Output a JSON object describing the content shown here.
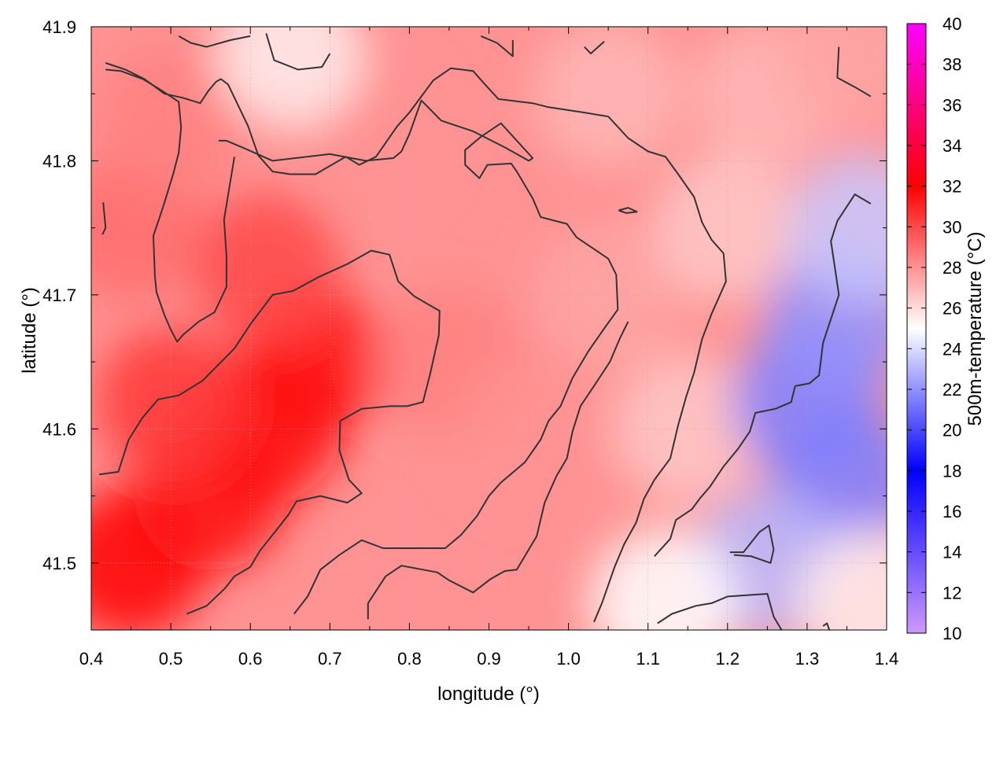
{
  "chart_data": {
    "type": "heatmap",
    "title": "",
    "xlabel": "longitude (°)",
    "ylabel": "latitude (°)",
    "colorbar_label": "500m-temperature (°C)",
    "xlim": [
      0.4,
      1.4
    ],
    "ylim": [
      41.45,
      41.9
    ],
    "x_ticks": [
      "0.4",
      "0.5",
      "0.6",
      "0.7",
      "0.8",
      "0.9",
      "1.0",
      "1.1",
      "1.2",
      "1.3",
      "1.4"
    ],
    "y_ticks": [
      "41.5",
      "41.6",
      "41.7",
      "41.8",
      "41.9"
    ],
    "colorbar_range": [
      10,
      40
    ],
    "colorbar_ticks": [
      "10",
      "12",
      "14",
      "16",
      "18",
      "20",
      "22",
      "24",
      "26",
      "28",
      "30",
      "32",
      "34",
      "36",
      "38",
      "40"
    ],
    "colorscale": [
      {
        "value": 10,
        "color": "#cc99ff"
      },
      {
        "value": 18,
        "color": "#0000ff"
      },
      {
        "value": 25,
        "color": "#ffffff"
      },
      {
        "value": 32,
        "color": "#ff0000"
      },
      {
        "value": 40,
        "color": "#ff00ff"
      }
    ],
    "grid": true,
    "field_regions": [
      {
        "lon": 0.45,
        "lat": 41.5,
        "temp": 32.0
      },
      {
        "lon": 0.55,
        "lat": 41.55,
        "temp": 31.5
      },
      {
        "lon": 0.62,
        "lat": 41.6,
        "temp": 31.5
      },
      {
        "lon": 0.68,
        "lat": 41.65,
        "temp": 31.5
      },
      {
        "lon": 0.62,
        "lat": 41.72,
        "temp": 30.0
      },
      {
        "lon": 0.5,
        "lat": 41.62,
        "temp": 30.5
      },
      {
        "lon": 0.45,
        "lat": 41.75,
        "temp": 29.0
      },
      {
        "lon": 0.5,
        "lat": 41.83,
        "temp": 28.5
      },
      {
        "lon": 0.75,
        "lat": 41.82,
        "temp": 28.0
      },
      {
        "lon": 0.85,
        "lat": 41.65,
        "temp": 28.5
      },
      {
        "lon": 0.95,
        "lat": 41.6,
        "temp": 28.0
      },
      {
        "lon": 1.05,
        "lat": 41.7,
        "temp": 27.5
      },
      {
        "lon": 1.05,
        "lat": 41.85,
        "temp": 27.0
      },
      {
        "lon": 1.25,
        "lat": 41.85,
        "temp": 27.0
      },
      {
        "lon": 1.15,
        "lat": 41.6,
        "temp": 26.5
      },
      {
        "lon": 1.2,
        "lat": 41.75,
        "temp": 26.5
      },
      {
        "lon": 0.65,
        "lat": 41.88,
        "temp": 25.5
      },
      {
        "lon": 1.36,
        "lat": 41.88,
        "temp": 27.5
      },
      {
        "lon": 1.3,
        "lat": 41.62,
        "temp": 21.5
      },
      {
        "lon": 1.34,
        "lat": 41.68,
        "temp": 22.0
      },
      {
        "lon": 1.35,
        "lat": 41.56,
        "temp": 21.5
      },
      {
        "lon": 1.25,
        "lat": 41.5,
        "temp": 23.0
      },
      {
        "lon": 1.37,
        "lat": 41.75,
        "temp": 23.5
      },
      {
        "lon": 1.12,
        "lat": 41.47,
        "temp": 25.0
      },
      {
        "lon": 1.38,
        "lat": 41.47,
        "temp": 25.5
      }
    ],
    "contours": [
      [
        [
          0.418,
          41.873
        ],
        [
          0.443,
          41.868
        ],
        [
          0.467,
          41.861
        ],
        [
          0.492,
          41.85
        ],
        [
          0.515,
          41.847
        ],
        [
          0.537,
          41.843
        ],
        [
          0.547,
          41.852
        ],
        [
          0.557,
          41.859
        ],
        [
          0.563,
          41.861
        ],
        [
          0.572,
          41.857
        ],
        [
          0.597,
          41.826
        ],
        [
          0.61,
          41.804
        ],
        [
          0.628,
          41.792
        ],
        [
          0.65,
          41.79
        ],
        [
          0.682,
          41.79
        ],
        [
          0.72,
          41.803
        ],
        [
          0.737,
          41.797
        ],
        [
          0.758,
          41.803
        ],
        [
          0.785,
          41.826
        ],
        [
          0.8,
          41.836
        ],
        [
          0.83,
          41.86
        ],
        [
          0.852,
          41.869
        ],
        [
          0.88,
          41.867
        ],
        [
          0.895,
          41.857
        ],
        [
          0.912,
          41.846
        ],
        [
          0.955,
          41.843
        ],
        [
          0.975,
          41.84
        ],
        [
          1.02,
          41.836
        ],
        [
          1.05,
          41.833
        ],
        [
          1.075,
          41.817
        ],
        [
          1.1,
          41.807
        ],
        [
          1.122,
          41.803
        ],
        [
          1.138,
          41.79
        ],
        [
          1.158,
          41.773
        ],
        [
          1.168,
          41.754
        ],
        [
          1.18,
          41.741
        ],
        [
          1.195,
          41.731
        ],
        [
          1.198,
          41.71
        ],
        [
          1.18,
          41.686
        ],
        [
          1.168,
          41.667
        ],
        [
          1.158,
          41.642
        ],
        [
          1.148,
          41.624
        ],
        [
          1.138,
          41.603
        ],
        [
          1.128,
          41.578
        ],
        [
          1.108,
          41.562
        ],
        [
          1.095,
          41.548
        ],
        [
          1.085,
          41.53
        ],
        [
          1.07,
          41.514
        ],
        [
          1.058,
          41.497
        ],
        [
          1.042,
          41.47
        ],
        [
          1.032,
          41.456
        ]
      ],
      [
        [
          0.418,
          41.868
        ],
        [
          0.437,
          41.867
        ],
        [
          0.465,
          41.861
        ],
        [
          0.487,
          41.853
        ],
        [
          0.51,
          41.844
        ],
        [
          0.513,
          41.825
        ],
        [
          0.51,
          41.806
        ],
        [
          0.503,
          41.79
        ],
        [
          0.49,
          41.765
        ],
        [
          0.478,
          41.744
        ],
        [
          0.48,
          41.714
        ],
        [
          0.482,
          41.702
        ],
        [
          0.492,
          41.685
        ],
        [
          0.5,
          41.674
        ],
        [
          0.508,
          41.665
        ],
        [
          0.515,
          41.67
        ],
        [
          0.535,
          41.68
        ],
        [
          0.555,
          41.687
        ],
        [
          0.57,
          41.706
        ],
        [
          0.57,
          41.729
        ],
        [
          0.567,
          41.756
        ],
        [
          0.575,
          41.785
        ],
        [
          0.58,
          41.803
        ]
      ],
      [
        [
          0.41,
          41.566
        ],
        [
          0.434,
          41.568
        ],
        [
          0.447,
          41.592
        ],
        [
          0.464,
          41.608
        ],
        [
          0.484,
          41.622
        ],
        [
          0.51,
          41.625
        ],
        [
          0.54,
          41.636
        ],
        [
          0.565,
          41.651
        ],
        [
          0.58,
          41.66
        ],
        [
          0.6,
          41.678
        ],
        [
          0.628,
          41.7
        ],
        [
          0.654,
          41.703
        ],
        [
          0.685,
          41.713
        ],
        [
          0.722,
          41.723
        ],
        [
          0.752,
          41.733
        ],
        [
          0.775,
          41.73
        ],
        [
          0.786,
          41.71
        ],
        [
          0.806,
          41.699
        ],
        [
          0.832,
          41.69
        ],
        [
          0.838,
          41.688
        ],
        [
          0.837,
          41.67
        ],
        [
          0.826,
          41.641
        ],
        [
          0.817,
          41.62
        ],
        [
          0.797,
          41.617
        ],
        [
          0.776,
          41.617
        ],
        [
          0.74,
          41.615
        ],
        [
          0.713,
          41.606
        ],
        [
          0.712,
          41.584
        ],
        [
          0.724,
          41.562
        ],
        [
          0.74,
          41.552
        ],
        [
          0.722,
          41.545
        ],
        [
          0.688,
          41.55
        ],
        [
          0.658,
          41.546
        ],
        [
          0.648,
          41.536
        ],
        [
          0.632,
          41.524
        ],
        [
          0.612,
          41.509
        ],
        [
          0.6,
          41.497
        ],
        [
          0.58,
          41.49
        ],
        [
          0.568,
          41.481
        ],
        [
          0.545,
          41.468
        ],
        [
          0.52,
          41.462
        ]
      ],
      [
        [
          0.655,
          41.462
        ],
        [
          0.672,
          41.475
        ],
        [
          0.688,
          41.495
        ],
        [
          0.712,
          41.506
        ],
        [
          0.74,
          41.517
        ],
        [
          0.767,
          41.511
        ],
        [
          0.8,
          41.511
        ],
        [
          0.845,
          41.511
        ],
        [
          0.865,
          41.521
        ],
        [
          0.885,
          41.535
        ],
        [
          0.9,
          41.55
        ],
        [
          0.915,
          41.56
        ],
        [
          0.945,
          41.575
        ],
        [
          0.965,
          41.592
        ],
        [
          0.975,
          41.606
        ],
        [
          0.99,
          41.617
        ],
        [
          1.005,
          41.638
        ],
        [
          1.025,
          41.658
        ],
        [
          1.045,
          41.675
        ],
        [
          1.062,
          41.689
        ],
        [
          1.06,
          41.715
        ],
        [
          1.05,
          41.727
        ],
        [
          1.03,
          41.735
        ],
        [
          1.01,
          41.743
        ],
        [
          0.998,
          41.753
        ],
        [
          0.965,
          41.758
        ],
        [
          0.955,
          41.772
        ],
        [
          0.935,
          41.792
        ],
        [
          0.928,
          41.798
        ],
        [
          0.898,
          41.797
        ],
        [
          0.888,
          41.787
        ],
        [
          0.87,
          41.797
        ],
        [
          0.87,
          41.808
        ],
        [
          0.89,
          41.818
        ],
        [
          0.915,
          41.828
        ],
        [
          0.955,
          41.802
        ],
        [
          0.95,
          41.8
        ],
        [
          0.92,
          41.81
        ],
        [
          0.88,
          41.822
        ],
        [
          0.84,
          41.83
        ],
        [
          0.815,
          41.845
        ],
        [
          0.8,
          41.82
        ],
        [
          0.79,
          41.807
        ],
        [
          0.78,
          41.802
        ],
        [
          0.745,
          41.8
        ],
        [
          0.7,
          41.805
        ],
        [
          0.628,
          41.8
        ],
        [
          0.59,
          41.81
        ],
        [
          0.57,
          41.815
        ],
        [
          0.56,
          41.815
        ]
      ],
      [
        [
          0.748,
          41.458
        ],
        [
          0.748,
          41.47
        ],
        [
          0.77,
          41.49
        ],
        [
          0.79,
          41.498
        ],
        [
          0.835,
          41.493
        ],
        [
          0.85,
          41.487
        ],
        [
          0.88,
          41.478
        ],
        [
          0.902,
          41.488
        ],
        [
          0.92,
          41.494
        ],
        [
          0.935,
          41.495
        ],
        [
          0.96,
          41.52
        ],
        [
          0.97,
          41.545
        ],
        [
          0.985,
          41.565
        ],
        [
          0.998,
          41.578
        ],
        [
          1.005,
          41.598
        ],
        [
          1.015,
          41.617
        ],
        [
          1.032,
          41.632
        ],
        [
          1.052,
          41.65
        ],
        [
          1.065,
          41.668
        ],
        [
          1.075,
          41.68
        ]
      ]
    ],
    "small_features": [
      {
        "name": "closed loop",
        "points": [
          [
            1.063,
            41.763
          ],
          [
            1.075,
            41.765
          ],
          [
            1.086,
            41.762
          ],
          [
            1.073,
            41.761
          ],
          [
            1.063,
            41.763
          ]
        ]
      },
      {
        "name": "loop south-east",
        "points": [
          [
            1.203,
            41.508
          ],
          [
            1.22,
            41.508
          ],
          [
            1.24,
            41.523
          ],
          [
            1.252,
            41.528
          ],
          [
            1.258,
            41.51
          ],
          [
            1.254,
            41.5
          ],
          [
            1.23,
            41.505
          ],
          [
            1.208,
            41.506
          ]
        ]
      },
      {
        "name": "top center segment",
        "points": [
          [
            0.62,
            41.895
          ],
          [
            0.63,
            41.875
          ],
          [
            0.66,
            41.868
          ],
          [
            0.69,
            41.87
          ],
          [
            0.7,
            41.88
          ]
        ]
      },
      {
        "name": "top right bits",
        "points": [
          [
            0.89,
            41.893
          ],
          [
            0.91,
            41.888
          ],
          [
            0.93,
            41.878
          ],
          [
            0.93,
            41.89
          ]
        ]
      },
      {
        "name": "top right bits 2",
        "points": [
          [
            1.02,
            41.885
          ],
          [
            1.028,
            41.88
          ],
          [
            1.045,
            41.889
          ]
        ]
      },
      {
        "name": "top right corner",
        "points": [
          [
            1.34,
            41.885
          ],
          [
            1.338,
            41.862
          ],
          [
            1.36,
            41.855
          ],
          [
            1.38,
            41.848
          ]
        ]
      },
      {
        "name": "right edge",
        "points": [
          [
            1.38,
            41.768
          ],
          [
            1.36,
            41.775
          ],
          [
            1.338,
            41.755
          ],
          [
            1.33,
            41.74
          ],
          [
            1.335,
            41.72
          ],
          [
            1.34,
            41.7
          ],
          [
            1.32,
            41.664
          ],
          [
            1.315,
            41.64
          ],
          [
            1.303,
            41.634
          ],
          [
            1.285,
            41.632
          ],
          [
            1.28,
            41.62
          ],
          [
            1.26,
            41.615
          ],
          [
            1.235,
            41.612
          ],
          [
            1.228,
            41.598
          ],
          [
            1.213,
            41.585
          ],
          [
            1.195,
            41.572
          ],
          [
            1.178,
            41.557
          ],
          [
            1.165,
            41.548
          ],
          [
            1.155,
            41.54
          ],
          [
            1.135,
            41.532
          ],
          [
            1.128,
            41.518
          ],
          [
            1.108,
            41.505
          ]
        ]
      },
      {
        "name": "bottom right",
        "points": [
          [
            1.112,
            41.455
          ],
          [
            1.13,
            41.462
          ],
          [
            1.16,
            41.468
          ],
          [
            1.18,
            41.47
          ],
          [
            1.2,
            41.475
          ],
          [
            1.25,
            41.477
          ],
          [
            1.258,
            41.46
          ],
          [
            1.268,
            41.45
          ]
        ]
      },
      {
        "name": "bottom right tiny",
        "points": [
          [
            1.32,
            41.453
          ],
          [
            1.325,
            41.455
          ],
          [
            1.328,
            41.45
          ]
        ]
      },
      {
        "name": "left edge bit",
        "points": [
          [
            0.415,
            41.769
          ],
          [
            0.418,
            41.75
          ],
          [
            0.414,
            41.745
          ]
        ]
      },
      {
        "name": "top left segments",
        "points": [
          [
            0.51,
            41.893
          ],
          [
            0.525,
            41.888
          ],
          [
            0.545,
            41.885
          ],
          [
            0.575,
            41.89
          ],
          [
            0.6,
            41.893
          ]
        ]
      }
    ]
  }
}
